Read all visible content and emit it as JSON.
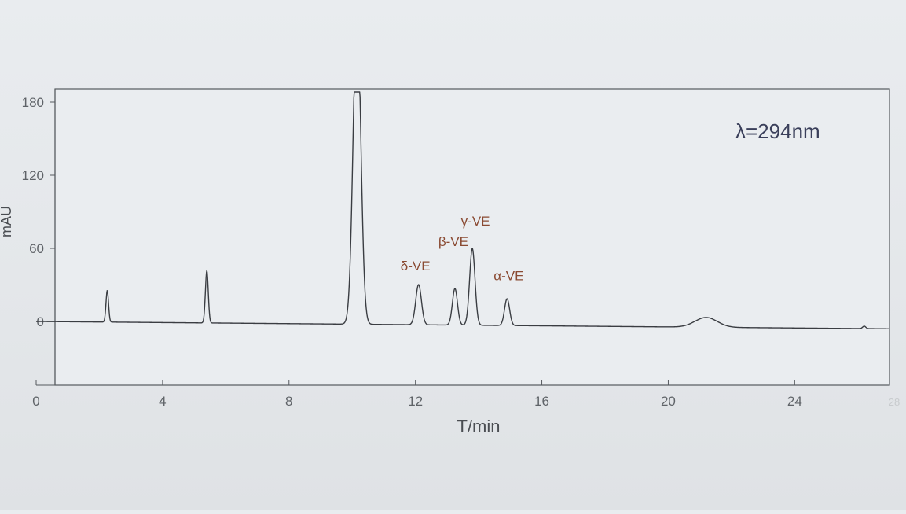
{
  "chart_data": {
    "type": "line",
    "title": "",
    "xlabel": "T/min",
    "ylabel": "mAU",
    "xlim": [
      0,
      27
    ],
    "ylim": [
      -50,
      195
    ],
    "x_ticks": [
      0,
      4,
      8,
      12,
      16,
      20,
      24,
      28
    ],
    "y_ticks": [
      0,
      60,
      120,
      180
    ],
    "x_tick_labels": [
      "0",
      "4",
      "8",
      "12",
      "16",
      "20",
      "24",
      "28"
    ],
    "y_tick_labels": [
      "0",
      "60",
      "120",
      "180"
    ],
    "annotation": "λ=294nm",
    "grid": false,
    "baseline_drift_end": -6,
    "series": [
      {
        "peaks": [
          {
            "x": 2.25,
            "y": 26,
            "width": 0.04
          },
          {
            "x": 5.4,
            "y": 43,
            "width": 0.045
          },
          {
            "x": 10.15,
            "y": 260,
            "width": 0.12
          },
          {
            "x": 12.1,
            "y": 33,
            "width": 0.09
          },
          {
            "x": 13.25,
            "y": 30,
            "width": 0.08
          },
          {
            "x": 13.8,
            "y": 63,
            "width": 0.085
          },
          {
            "x": 14.9,
            "y": 22,
            "width": 0.08
          },
          {
            "x": 21.2,
            "y": 8,
            "width": 0.35
          },
          {
            "x": 26.2,
            "y": 2,
            "width": 0.05
          }
        ]
      }
    ],
    "peak_labels": [
      {
        "text": "δ-VE",
        "x": 12.0,
        "y": 38
      },
      {
        "text": "β-VE",
        "x": 13.2,
        "y": 58
      },
      {
        "text": "γ-VE",
        "x": 13.9,
        "y": 75
      },
      {
        "text": "α-VE",
        "x": 14.95,
        "y": 30
      }
    ]
  }
}
